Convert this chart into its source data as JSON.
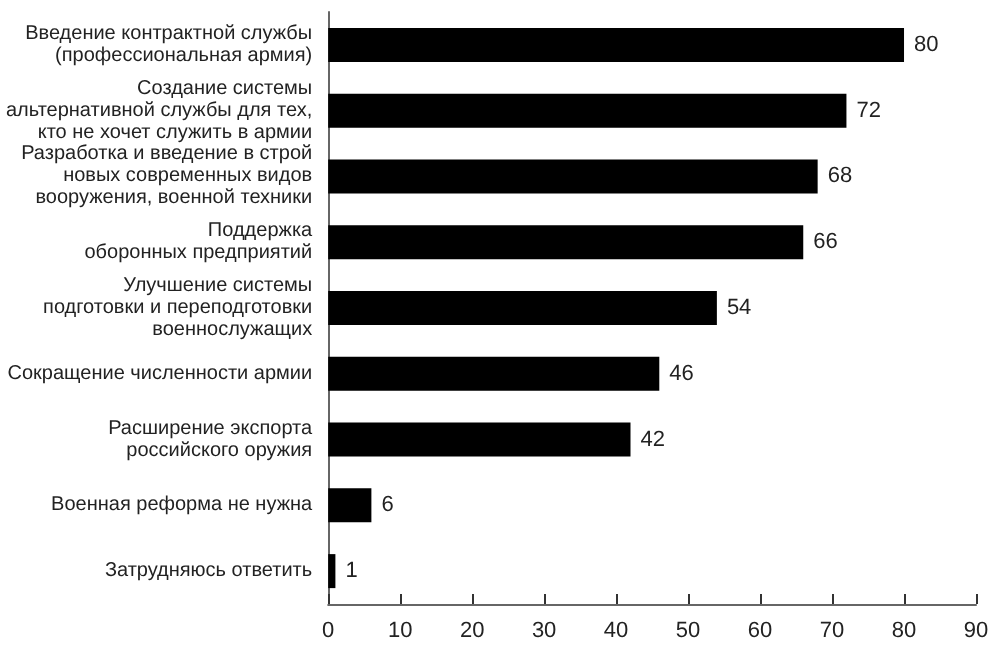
{
  "chart_data": {
    "type": "bar",
    "orientation": "horizontal",
    "categories": [
      "Введение контрактной службы\n(профессиональная армия)",
      "Создание системы\nальтернативной службы для тех,\nкто не хочет служить в армии",
      "Разработка и введение в строй\nновых современных видов\nвооружения, военной техники",
      "Поддержка\nоборонных предприятий",
      "Улучшение системы\nподготовки и переподготовки\nвоеннослужащих",
      "Сокращение численности армии",
      "Расширение экспорта\nроссийского оружия",
      "Военная реформа не нужна",
      "Затрудняюсь ответить"
    ],
    "values": [
      80,
      72,
      68,
      66,
      54,
      46,
      42,
      6,
      1
    ],
    "color": "#000000",
    "xlim": [
      0,
      90
    ],
    "xticks": [
      0,
      10,
      20,
      30,
      40,
      50,
      60,
      70,
      80,
      90
    ],
    "data_labels": true
  }
}
